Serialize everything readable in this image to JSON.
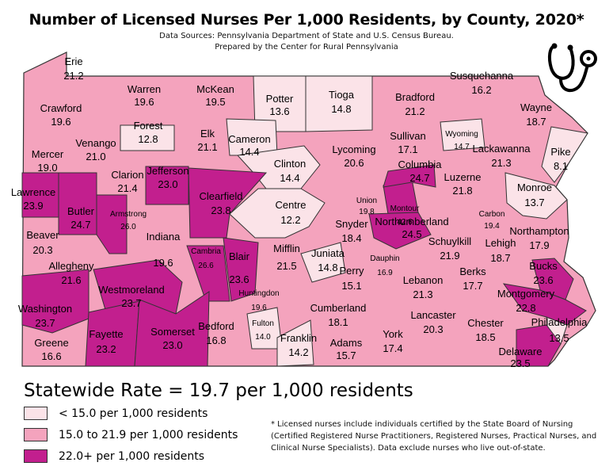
{
  "title": "Number of Licensed Nurses Per 1,000 Residents, by County, 2020*",
  "sources": "Data Sources: Pennsylvania Department of State and U.S. Census Bureau.",
  "prepared_by": "Prepared by the Center for Rural Pennsylvania",
  "statewide": "Statewide Rate = 19.7 per 1,000 residents",
  "colors": {
    "low": "#fbe3e8",
    "mid": "#f4a3bd",
    "high": "#c21f8e",
    "border": "#333333"
  },
  "legend": [
    {
      "label": "< 15.0 per 1,000 residents",
      "class": "low"
    },
    {
      "label": "15.0 to 21.9 per 1,000 residents",
      "class": "mid"
    },
    {
      "label": "22.0+ per 1,000 residents",
      "class": "high"
    }
  ],
  "footnote": "* Licensed nurses include individuals certified by the State Board of Nursing (Certified Registered Nurse Practitioners, Registered Nurses, Practical Nurses, and Clinical Nurse Specialists). Data exclude nurses who live out-of-state.",
  "icon": "stethoscope-icon",
  "counties": [
    {
      "name": "Erie",
      "value": "21.2",
      "class": "mid"
    },
    {
      "name": "Warren",
      "value": "19.6",
      "class": "mid"
    },
    {
      "name": "McKean",
      "value": "19.5",
      "class": "mid"
    },
    {
      "name": "Potter",
      "value": "13.6",
      "class": "low"
    },
    {
      "name": "Tioga",
      "value": "14.8",
      "class": "low"
    },
    {
      "name": "Bradford",
      "value": "21.2",
      "class": "mid"
    },
    {
      "name": "Susquehanna",
      "value": "16.2",
      "class": "mid"
    },
    {
      "name": "Wayne",
      "value": "18.7",
      "class": "mid"
    },
    {
      "name": "Crawford",
      "value": "19.6",
      "class": "mid"
    },
    {
      "name": "Forest",
      "value": "12.8",
      "class": "low"
    },
    {
      "name": "Elk",
      "value": "21.1",
      "class": "mid"
    },
    {
      "name": "Cameron",
      "value": "14.4",
      "class": "low"
    },
    {
      "name": "Lycoming",
      "value": "20.6",
      "class": "mid"
    },
    {
      "name": "Sullivan",
      "value": "17.1",
      "class": "mid"
    },
    {
      "name": "Wyoming",
      "value": "14.7",
      "class": "low"
    },
    {
      "name": "Lackawanna",
      "value": "21.3",
      "class": "mid"
    },
    {
      "name": "Pike",
      "value": "8.1",
      "class": "low"
    },
    {
      "name": "Mercer",
      "value": "19.0",
      "class": "mid"
    },
    {
      "name": "Venango",
      "value": "21.0",
      "class": "mid"
    },
    {
      "name": "Clarion",
      "value": "21.4",
      "class": "mid"
    },
    {
      "name": "Jefferson",
      "value": "23.0",
      "class": "high"
    },
    {
      "name": "Clinton",
      "value": "14.4",
      "class": "low"
    },
    {
      "name": "Columbia",
      "value": "24.7",
      "class": "high"
    },
    {
      "name": "Luzerne",
      "value": "21.8",
      "class": "mid"
    },
    {
      "name": "Monroe",
      "value": "13.7",
      "class": "low"
    },
    {
      "name": "Lawrence",
      "value": "23.9",
      "class": "high"
    },
    {
      "name": "Butler",
      "value": "24.7",
      "class": "high"
    },
    {
      "name": "Armstrong",
      "value": "26.0",
      "class": "high"
    },
    {
      "name": "Clearfield",
      "value": "23.8",
      "class": "high"
    },
    {
      "name": "Centre",
      "value": "12.2",
      "class": "low"
    },
    {
      "name": "Union",
      "value": "19.8",
      "class": "mid"
    },
    {
      "name": "Montour",
      "value": "42.6",
      "class": "high"
    },
    {
      "name": "Carbon",
      "value": "19.4",
      "class": "mid"
    },
    {
      "name": "Northampton",
      "value": "17.9",
      "class": "mid"
    },
    {
      "name": "Beaver",
      "value": "20.3",
      "class": "mid"
    },
    {
      "name": "Snyder",
      "value": "18.4",
      "class": "mid"
    },
    {
      "name": "Northumberland",
      "value": "24.5",
      "class": "high"
    },
    {
      "name": "Schuylkill",
      "value": "21.9",
      "class": "mid"
    },
    {
      "name": "Lehigh",
      "value": "18.7",
      "class": "mid"
    },
    {
      "name": "Allegheny",
      "value": "21.6",
      "class": "mid"
    },
    {
      "name": "Indiana",
      "value": "19.6",
      "class": "mid"
    },
    {
      "name": "Cambria",
      "value": "26.6",
      "class": "high"
    },
    {
      "name": "Blair",
      "value": "23.6",
      "class": "high"
    },
    {
      "name": "Mifflin",
      "value": "21.5",
      "class": "mid"
    },
    {
      "name": "Juniata",
      "value": "14.8",
      "class": "low"
    },
    {
      "name": "Perry",
      "value": "15.1",
      "class": "mid"
    },
    {
      "name": "Dauphin",
      "value": "16.9",
      "class": "mid"
    },
    {
      "name": "Berks",
      "value": "17.7",
      "class": "mid"
    },
    {
      "name": "Bucks",
      "value": "23.6",
      "class": "high"
    },
    {
      "name": "Westmoreland",
      "value": "23.7",
      "class": "high"
    },
    {
      "name": "Huntingdon",
      "value": "19.6",
      "class": "mid"
    },
    {
      "name": "Lebanon",
      "value": "21.3",
      "class": "mid"
    },
    {
      "name": "Montgomery",
      "value": "22.8",
      "class": "high"
    },
    {
      "name": "Washington",
      "value": "23.7",
      "class": "high"
    },
    {
      "name": "Cumberland",
      "value": "18.1",
      "class": "mid"
    },
    {
      "name": "Lancaster",
      "value": "20.3",
      "class": "mid"
    },
    {
      "name": "Chester",
      "value": "18.5",
      "class": "mid"
    },
    {
      "name": "Philadelphia",
      "value": "13.5",
      "class": "low"
    },
    {
      "name": "Bedford",
      "value": "16.8",
      "class": "mid"
    },
    {
      "name": "Fulton",
      "value": "14.0",
      "class": "low"
    },
    {
      "name": "Somerset",
      "value": "23.0",
      "class": "high"
    },
    {
      "name": "Fayette",
      "value": "23.2",
      "class": "high"
    },
    {
      "name": "Greene",
      "value": "16.6",
      "class": "mid"
    },
    {
      "name": "Franklin",
      "value": "14.2",
      "class": "low"
    },
    {
      "name": "Adams",
      "value": "15.7",
      "class": "mid"
    },
    {
      "name": "York",
      "value": "17.4",
      "class": "mid"
    },
    {
      "name": "Delaware",
      "value": "23.5",
      "class": "high"
    }
  ]
}
